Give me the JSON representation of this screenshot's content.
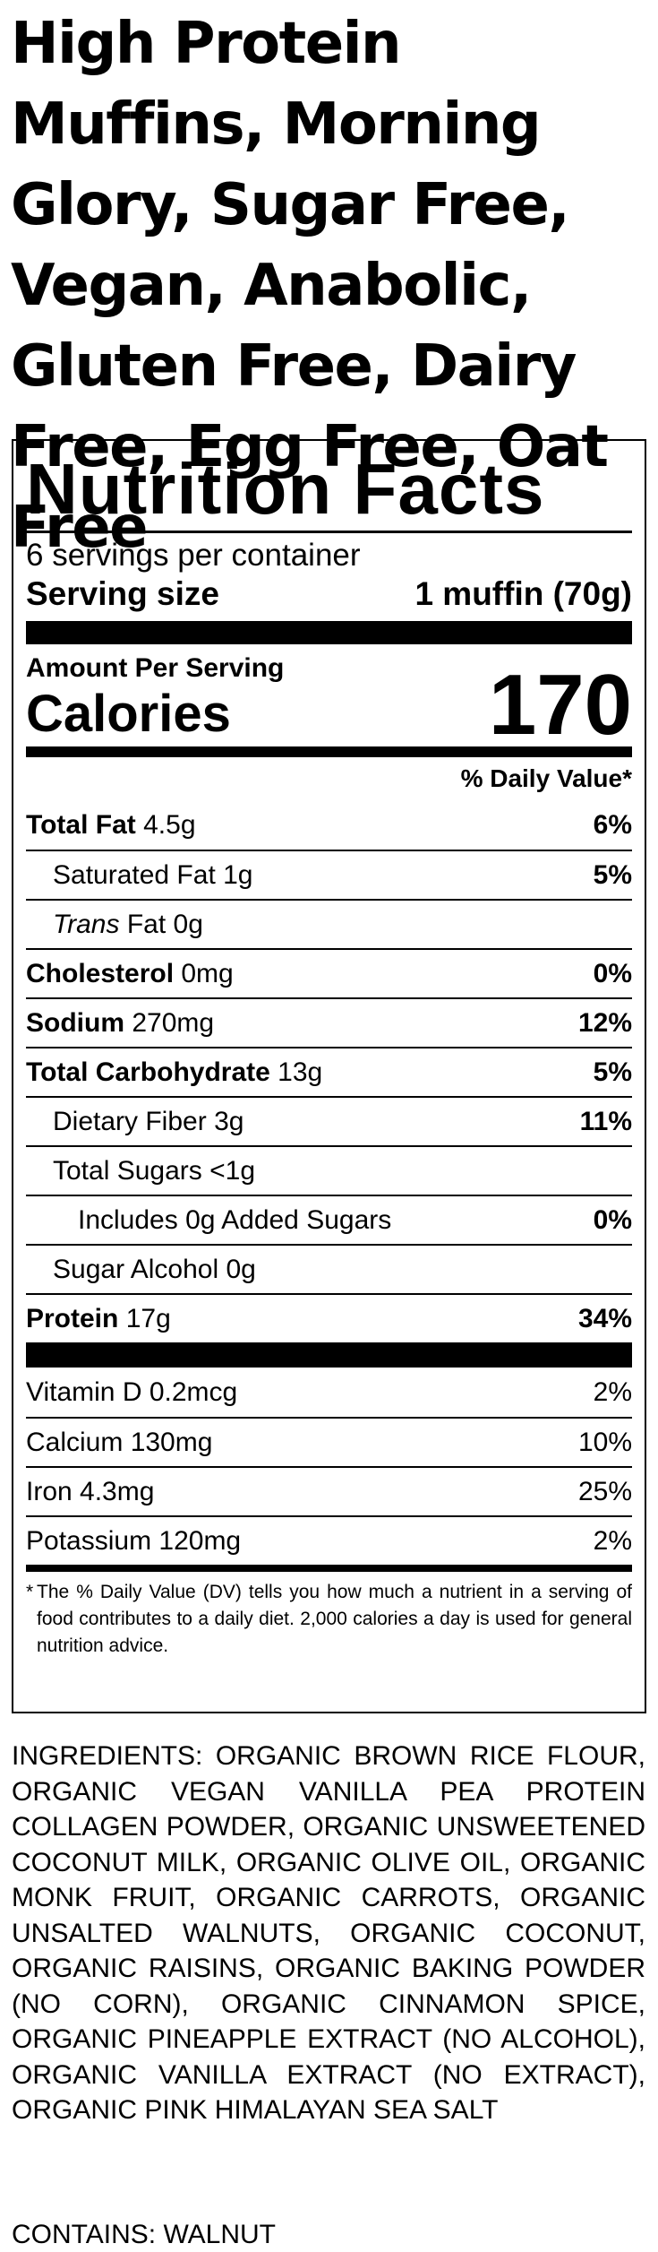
{
  "title": "High Protein Muffins, Morning Glory, Sugar Free, Vegan, Anabolic, Gluten Free, Dairy Free, Egg Free, Oat Free",
  "label": {
    "heading": "Nutrition Facts",
    "servings": "6 servings per container",
    "serving_size_label": "Serving size",
    "serving_size_value": "1 muffin (70g)",
    "amount_per_serving": "Amount Per Serving",
    "calories_label": "Calories",
    "calories_value": "170",
    "daily_value_header": "% Daily Value*",
    "rows": [
      {
        "name": "Total Fat",
        "amount": "4.5g",
        "dv": "6%",
        "bold": true,
        "indent": 0
      },
      {
        "name": "Saturated Fat",
        "amount": "1g",
        "dv": "5%",
        "bold": false,
        "indent": 1
      },
      {
        "italic": "Trans",
        "name": "Fat",
        "amount": "0g",
        "bold": false,
        "indent": 1
      },
      {
        "name": "Cholesterol",
        "amount": "0mg",
        "dv": "0%",
        "bold": true,
        "indent": 0
      },
      {
        "name": "Sodium",
        "amount": "270mg",
        "dv": "12%",
        "bold": true,
        "indent": 0
      },
      {
        "name": "Total Carbohydrate",
        "amount": "13g",
        "dv": "5%",
        "bold": true,
        "indent": 0
      },
      {
        "name": "Dietary Fiber",
        "amount": "3g",
        "dv": "11%",
        "bold": false,
        "indent": 1
      },
      {
        "name": "Total Sugars",
        "amount": "<1g",
        "bold": false,
        "indent": 1
      },
      {
        "name": "Includes 0g Added Sugars",
        "dv": "0%",
        "bold": false,
        "indent": 2
      },
      {
        "name": "Sugar Alcohol",
        "amount": "0g",
        "bold": false,
        "indent": 1
      },
      {
        "name": "Protein",
        "amount": "17g",
        "dv": "34%",
        "bold": true,
        "indent": 0
      }
    ],
    "vitamins": [
      {
        "name": "Vitamin D 0.2mcg",
        "dv": "2%"
      },
      {
        "name": "Calcium 130mg",
        "dv": "10%"
      },
      {
        "name": "Iron 4.3mg",
        "dv": "25%"
      },
      {
        "name": "Potassium 120mg",
        "dv": "2%"
      }
    ],
    "footnote_star": "*",
    "footnote": "The % Daily Value (DV) tells you how much a nutrient in a serving of food contributes to a daily diet. 2,000 calories a day is used for general nutrition advice."
  },
  "ingredients": "INGREDIENTS: ORGANIC BROWN RICE FLOUR, ORGANIC VEGAN VANILLA PEA PROTEIN COLLAGEN POWDER, ORGANIC UNSWEETENED COCONUT MILK, ORGANIC OLIVE OIL, ORGANIC MONK FRUIT, ORGANIC CARROTS, ORGANIC UNSALTED WALNUTS, ORGANIC COCONUT, ORGANIC RAISINS, ORGANIC BAKING POWDER (NO CORN), ORGANIC CINNAMON SPICE, ORGANIC PINEAPPLE EXTRACT (NO ALCOHOL), ORGANIC VANILLA EXTRACT (NO EXTRACT), ORGANIC PINK HIMALAYAN SEA SALT",
  "contains": "CONTAINS: WALNUT"
}
